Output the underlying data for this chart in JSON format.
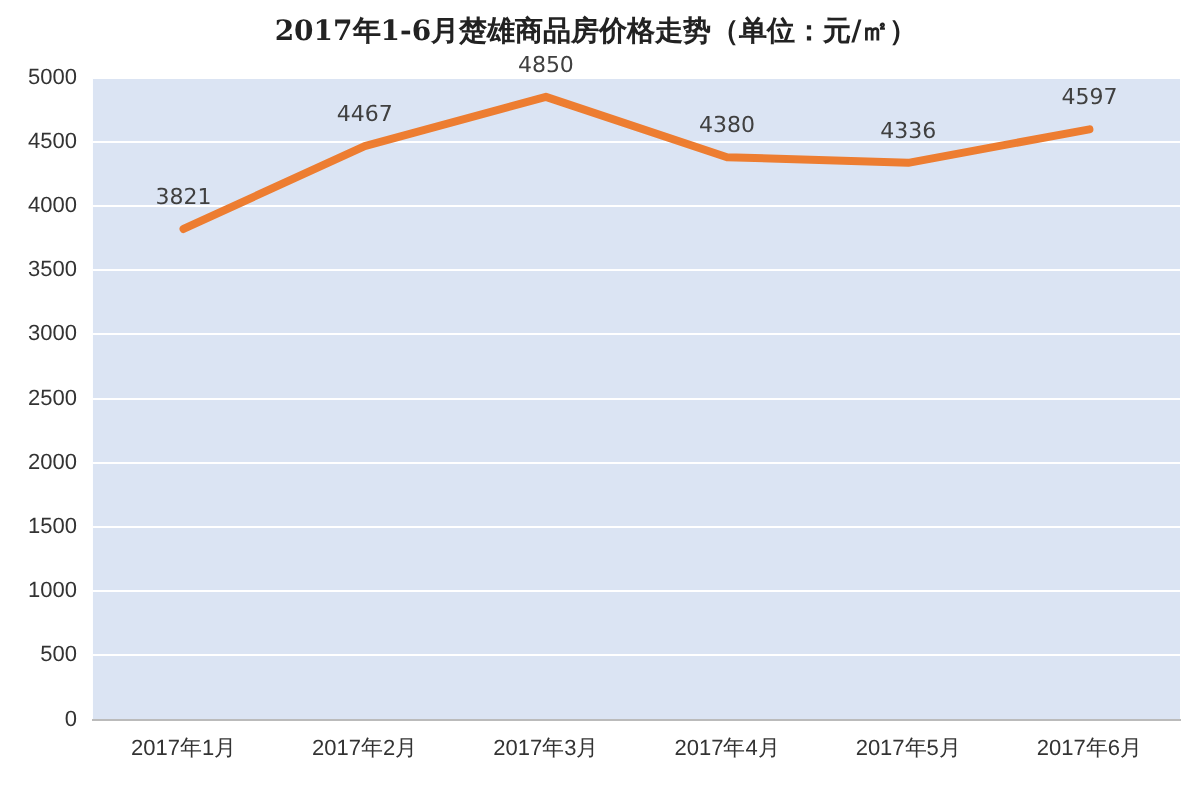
{
  "chart_data": {
    "type": "line",
    "title": "2017年1-6月楚雄商品房价格走势（单位：元/㎡）",
    "categories": [
      "2017年1月",
      "2017年2月",
      "2017年3月",
      "2017年4月",
      "2017年5月",
      "2017年6月"
    ],
    "series": [
      {
        "color": "#ed7d31",
        "values": [
          3821,
          4467,
          4850,
          4380,
          4336,
          4597
        ]
      }
    ],
    "ylim": [
      0,
      5000
    ],
    "yticks": [
      0,
      500,
      1000,
      1500,
      2000,
      2500,
      3000,
      3500,
      4000,
      4500,
      5000
    ],
    "grid": "y",
    "data_labels": true,
    "marker": "none",
    "line_style": "solid"
  }
}
